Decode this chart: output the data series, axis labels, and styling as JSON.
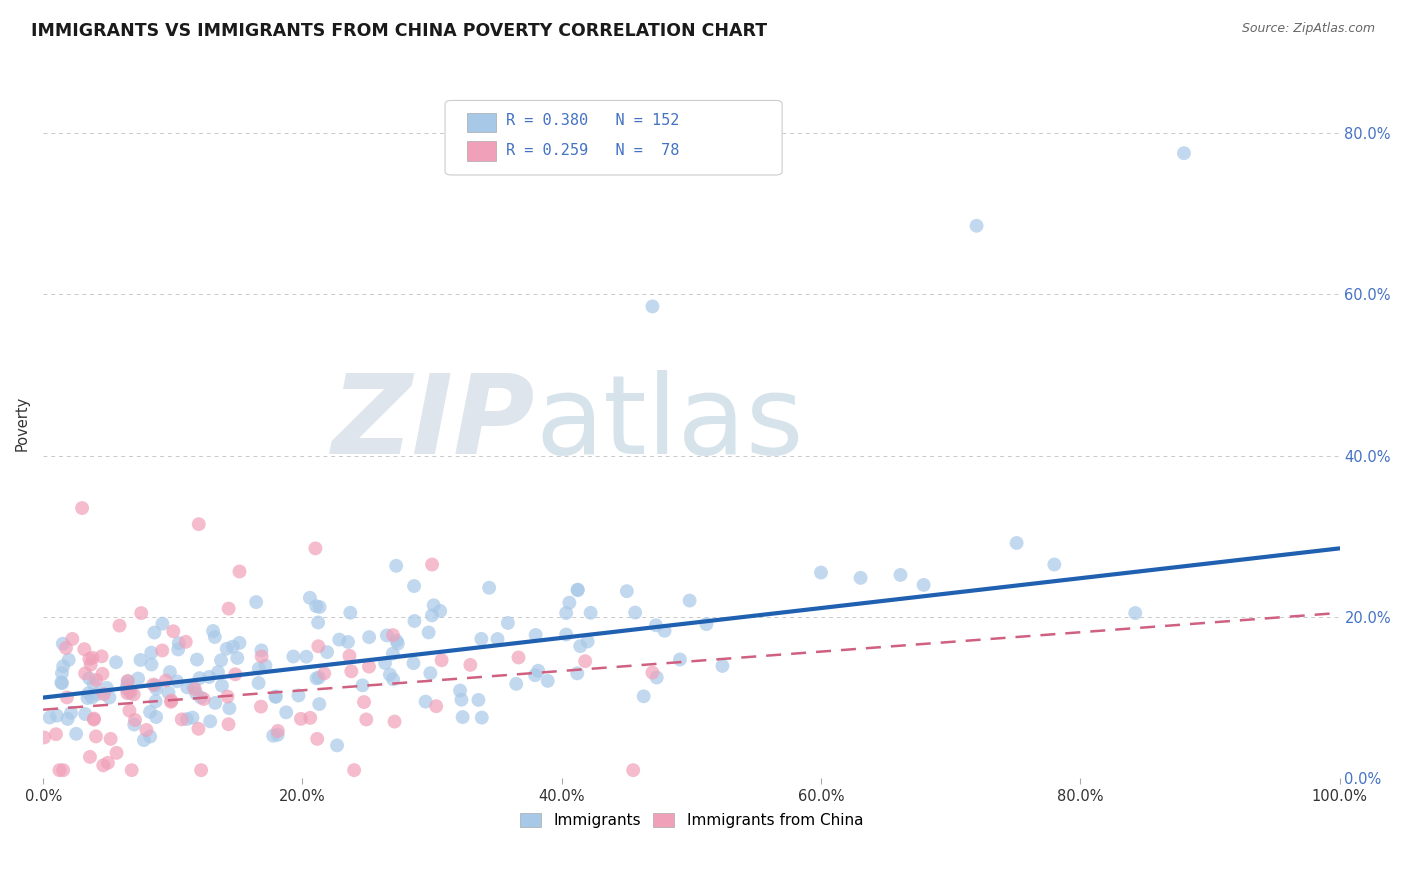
{
  "title": "IMMIGRANTS VS IMMIGRANTS FROM CHINA POVERTY CORRELATION CHART",
  "source": "Source: ZipAtlas.com",
  "ylabel": "Poverty",
  "xlim": [
    0.0,
    1.0
  ],
  "ylim": [
    0.0,
    0.88
  ],
  "blue_R": 0.38,
  "blue_N": 152,
  "pink_R": 0.259,
  "pink_N": 78,
  "blue_color": "#a8c8e8",
  "pink_color": "#f0a0b8",
  "blue_line_color": "#2060b0",
  "pink_line_color": "#d06080",
  "watermark_zip": "ZIP",
  "watermark_atlas": "atlas",
  "watermark_color_zip": "#c8d4e0",
  "watermark_color_atlas": "#b0c8d8",
  "legend_label_blue": "Immigrants",
  "legend_label_pink": "Immigrants from China",
  "xticks": [
    0.0,
    0.2,
    0.4,
    0.6,
    0.8,
    1.0
  ],
  "xtick_labels": [
    "0.0%",
    "20.0%",
    "40.0%",
    "60.0%",
    "80.0%",
    "100.0%"
  ],
  "ytick_positions": [
    0.0,
    0.2,
    0.4,
    0.6,
    0.8
  ],
  "ytick_labels_right": [
    "0.0%",
    "20.0%",
    "40.0%",
    "60.0%",
    "80.0%"
  ],
  "background_color": "#ffffff",
  "grid_color": "#bbbbbb",
  "blue_trend_x0": 0.0,
  "blue_trend_y0": 0.1,
  "blue_trend_x1": 1.0,
  "blue_trend_y1": 0.285,
  "pink_trend_x0": 0.0,
  "pink_trend_y0": 0.085,
  "pink_trend_x1": 1.0,
  "pink_trend_y1": 0.205
}
